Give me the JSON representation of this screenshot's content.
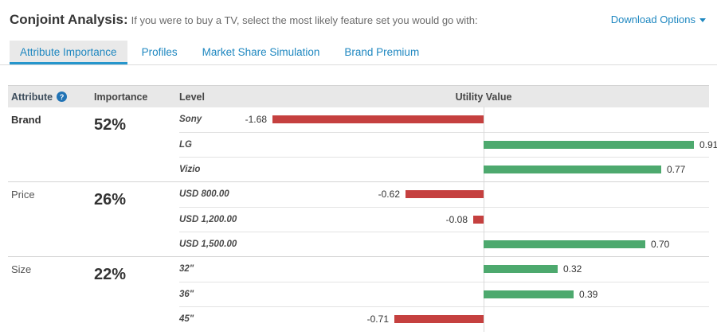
{
  "header": {
    "title": "Conjoint Analysis:",
    "subtitle": "If you were to buy a TV, select the most likely feature set you would go with:",
    "download_label": "Download Options"
  },
  "tabs": [
    {
      "label": "Attribute Importance",
      "active": true
    },
    {
      "label": "Profiles",
      "active": false
    },
    {
      "label": "Market Share Simulation",
      "active": false
    },
    {
      "label": "Brand Premium",
      "active": false
    }
  ],
  "table": {
    "headers": {
      "attribute": "Attribute",
      "importance": "Importance",
      "level": "Level",
      "utility": "Utility Value"
    },
    "help_icon": "?"
  },
  "chart_data": {
    "type": "bar",
    "orientation": "horizontal",
    "zero_axis": true,
    "value_format": "0.00",
    "negative_color": "#c5403f",
    "positive_color": "#4da96e",
    "scaling_note": "negative and positive sides each scaled to their own max",
    "groups": [
      {
        "attribute": "Brand",
        "importance": "52%",
        "bold": true,
        "levels": [
          {
            "label": "Sony",
            "value": -1.68
          },
          {
            "label": "LG",
            "value": 0.91
          },
          {
            "label": "Vizio",
            "value": 0.77
          }
        ]
      },
      {
        "attribute": "Price",
        "importance": "26%",
        "bold": false,
        "levels": [
          {
            "label": "USD 800.00",
            "value": -0.62
          },
          {
            "label": "USD 1,200.00",
            "value": -0.08
          },
          {
            "label": "USD 1,500.00",
            "value": 0.7
          }
        ]
      },
      {
        "attribute": "Size",
        "importance": "22%",
        "bold": false,
        "levels": [
          {
            "label": "32\"",
            "value": 0.32
          },
          {
            "label": "36\"",
            "value": 0.39
          },
          {
            "label": "45\"",
            "value": -0.71
          }
        ]
      }
    ]
  }
}
